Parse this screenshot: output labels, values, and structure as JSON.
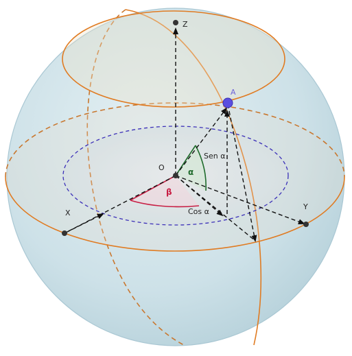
{
  "labels": {
    "z": "Z",
    "x": "X",
    "y": "Y",
    "origin": "O",
    "point_a": "A",
    "alpha": "α",
    "beta": "β",
    "sen_alpha": "Sen α",
    "cos_alpha": "Cos α"
  },
  "colors": {
    "sphere_fill": "#cfe3ea",
    "sphere_edge": "#a9c7d3",
    "orange_circle": "#e07b22",
    "orange_dashed": "#c9772e",
    "purple_dashed": "#3b2fb8",
    "axis": "#111111",
    "alpha_arc": "#1f6b2c",
    "beta_arc": "#c81e44",
    "point_a": "#5a4fe0",
    "label_text": "#222222",
    "point_label": "#6e63d8"
  }
}
